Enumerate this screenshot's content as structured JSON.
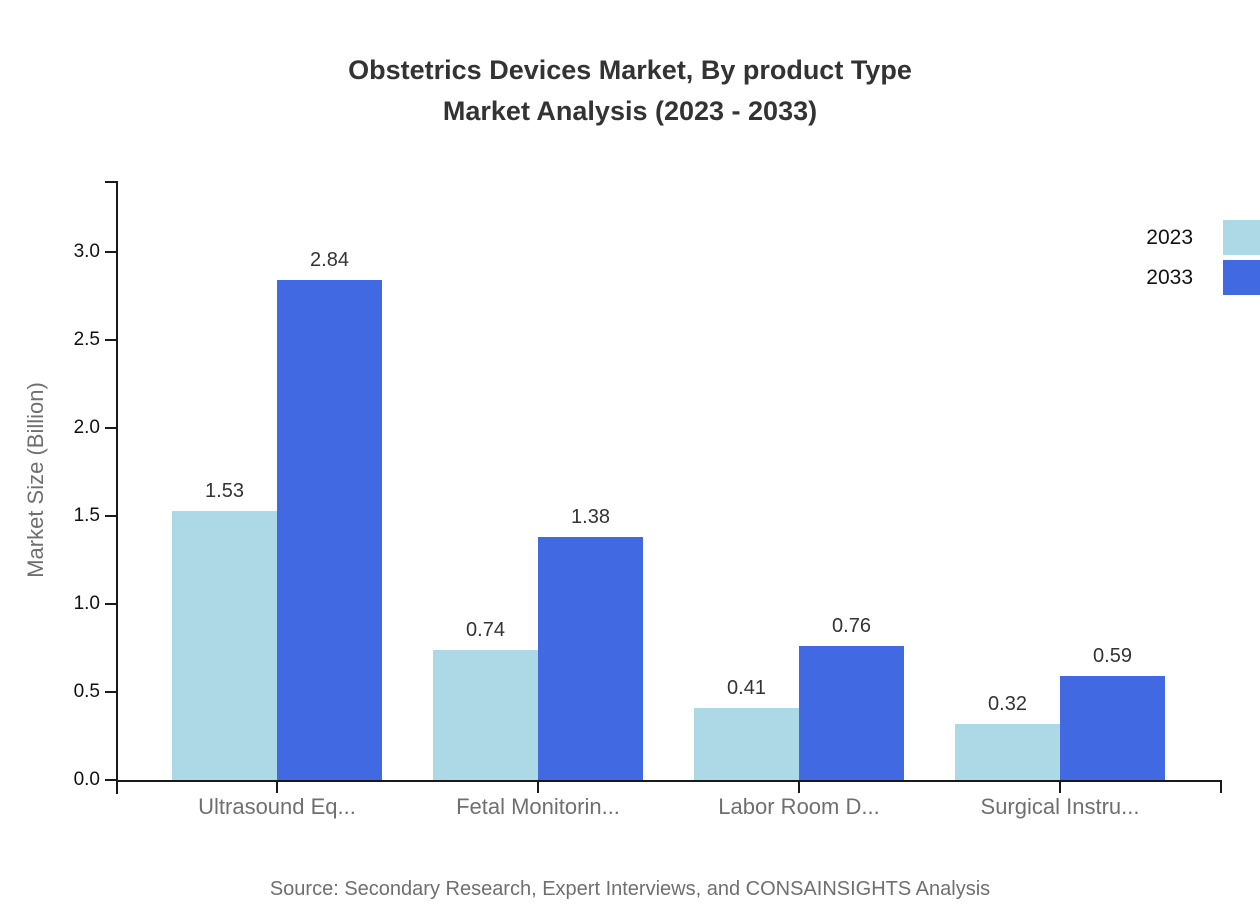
{
  "title": {
    "line1": "Obstetrics Devices Market, By product Type",
    "line2": "Market Analysis (2023 - 2033)"
  },
  "source": "Source: Secondary Research, Expert Interviews, and CONSAINSIGHTS Analysis",
  "colors": {
    "series_2023": "#ADD8E6",
    "series_2033": "#4169E1",
    "axis": "#1a1a1a",
    "dark_text": "#333333",
    "muted_text": "#6f6f6f"
  },
  "chart_data": {
    "type": "bar",
    "categories": [
      "Ultrasound Eq...",
      "Fetal Monitorin...",
      "Labor Room D...",
      "Surgical Instru..."
    ],
    "series": [
      {
        "name": "2023",
        "color": "#ADD8E6",
        "values": [
          1.53,
          0.74,
          0.41,
          0.32
        ]
      },
      {
        "name": "2033",
        "color": "#4169E1",
        "values": [
          2.84,
          1.38,
          0.76,
          0.59
        ]
      }
    ],
    "ylabel": "Market Size (Billion)",
    "yticks": [
      0.0,
      0.5,
      1.0,
      1.5,
      2.0,
      2.5,
      3.0
    ],
    "ylim": [
      0,
      3.4
    ],
    "grid": false,
    "legend_position": "top-right",
    "value_labels": true
  }
}
